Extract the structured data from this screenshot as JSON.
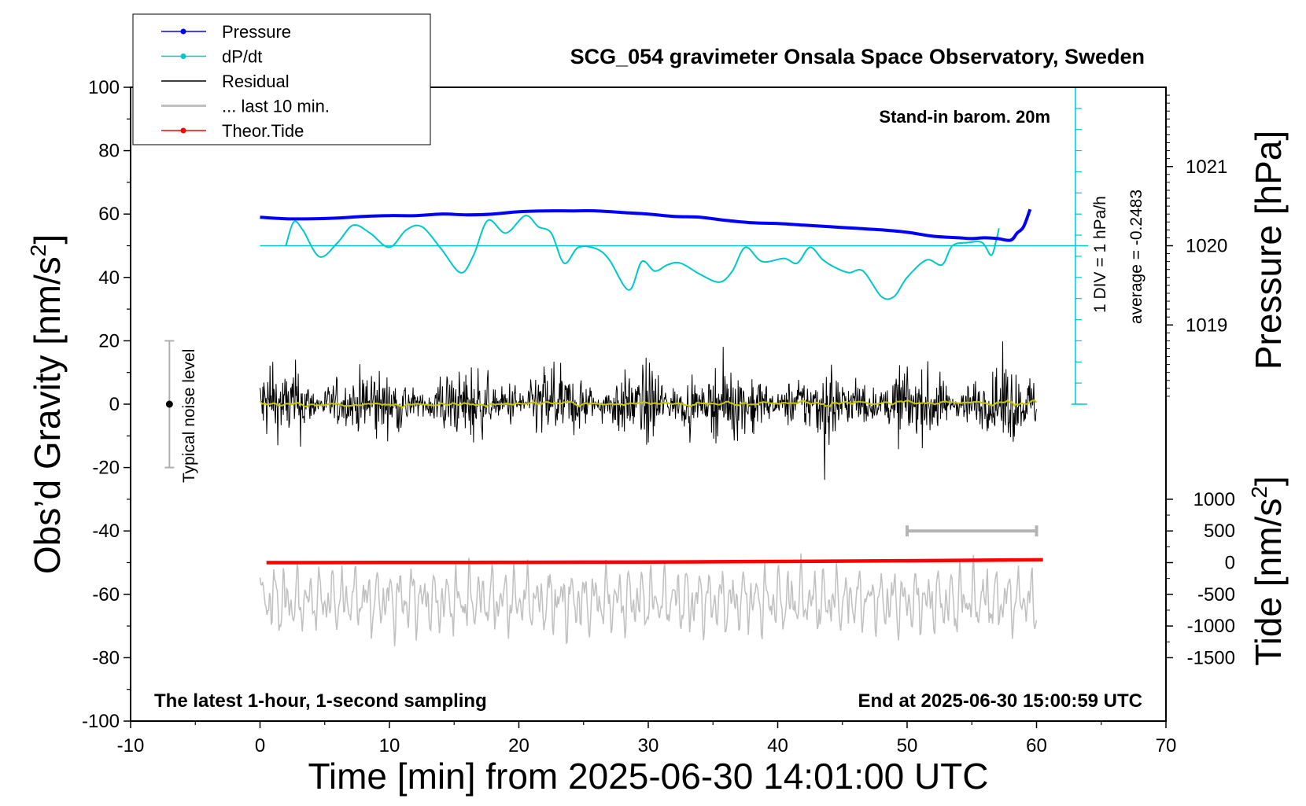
{
  "chart_data": {
    "type": "line",
    "title": "SCG_054 gravimeter Onsala Space Observatory, Sweden",
    "xlabel": "Time [min] from 2025-06-30 14:01:00 UTC",
    "ylabel": "Obs’d Gravity [nm/s",
    "ylabel_sup": "2",
    "ylabel_end": "]",
    "y2label": "Pressure [hPa]",
    "y3label": "Tide [nm/s",
    "y3label_sup": "2",
    "y3label_end": "]",
    "xlim": [
      -10,
      70
    ],
    "ylim": [
      -100,
      100
    ],
    "x_ticks": [
      -10,
      0,
      10,
      20,
      30,
      40,
      50,
      60,
      70
    ],
    "y_ticks": [
      -100,
      -80,
      -60,
      -40,
      -20,
      0,
      20,
      40,
      60,
      80,
      100
    ],
    "pressure_ticks": [
      1019,
      1020,
      1021
    ],
    "pressure_scale": {
      "ref_hpa": 1020,
      "ref_gravity_equiv": 50,
      "gravity_per_hpa": 25
    },
    "tide_ticks": [
      1000,
      500,
      0,
      -500,
      -1000,
      -1500
    ],
    "tide_scale": {
      "ref_value": 0,
      "ref_gravity_equiv": -50,
      "gravity_per_unit": 0.02
    },
    "grid": false,
    "legend_position": "top-left",
    "legend": [
      {
        "label": "Pressure",
        "color": "#0000ff",
        "marker": "dot"
      },
      {
        "label": "dP/dt",
        "color": "#00c8c8",
        "marker": "dot"
      },
      {
        "label": "Residual",
        "color": "#000000",
        "marker": "line"
      },
      {
        "label": "... last 10 min.",
        "color": "#c0c0c0",
        "marker": "line"
      },
      {
        "label": "Theor.Tide",
        "color": "#ff0000",
        "marker": "dot"
      }
    ],
    "annotations": {
      "barometer": "Stand-in barom. 20m",
      "dpdt_scale": "1 DIV = 1 hPa/h",
      "dpdt_average": "average = -0.2483",
      "noise": "Typical noise level",
      "latest": "The latest 1-hour, 1-second sampling",
      "end_time": "End at 2025-06-30 15:00:59 UTC"
    },
    "series": [
      {
        "name": "Pressure",
        "color": "#0000ff",
        "unit": "hPa",
        "x": [
          0,
          2,
          4,
          6,
          8,
          10,
          12,
          14,
          16,
          18,
          20,
          22,
          24,
          26,
          28,
          30,
          32,
          34,
          36,
          38,
          40,
          42,
          44,
          46,
          48,
          50,
          52,
          54,
          55,
          56,
          57,
          58,
          58.5,
          59,
          59.5
        ],
        "y": [
          1020.36,
          1020.34,
          1020.34,
          1020.35,
          1020.37,
          1020.38,
          1020.38,
          1020.4,
          1020.39,
          1020.4,
          1020.43,
          1020.44,
          1020.44,
          1020.44,
          1020.42,
          1020.4,
          1020.37,
          1020.36,
          1020.32,
          1020.29,
          1020.28,
          1020.26,
          1020.24,
          1020.22,
          1020.2,
          1020.17,
          1020.12,
          1020.1,
          1020.09,
          1020.1,
          1020.09,
          1020.07,
          1020.16,
          1020.24,
          1020.46
        ]
      },
      {
        "name": "dP/dt",
        "color": "#00c8c8",
        "unit": "nm/s2 equiv.",
        "x": [
          2,
          2.6,
          3.3,
          4.6,
          6,
          7.2,
          8.5,
          10,
          11.3,
          12.5,
          14,
          15.5,
          16.5,
          17.6,
          19,
          20.5,
          21.5,
          22.5,
          23.5,
          24.6,
          26,
          27,
          28.5,
          29.5,
          30.5,
          31.5,
          32.5,
          34,
          35.5,
          36.5,
          37.5,
          38.8,
          40.5,
          41.5,
          42.5,
          43.5,
          44.5,
          45.5,
          46.6,
          48,
          49,
          50,
          51.5,
          52.7,
          53.5,
          54.7,
          55.8,
          56.5,
          56.9,
          57.1
        ],
        "y": [
          50,
          57.5,
          55,
          46.5,
          51,
          56.5,
          54,
          49.5,
          55,
          56,
          49,
          41.5,
          47,
          58,
          54,
          59.5,
          56,
          54,
          44.5,
          49.5,
          49,
          45.5,
          36,
          45,
          42,
          44,
          44.5,
          41,
          38.5,
          42,
          49.5,
          45,
          46,
          44.5,
          49.5,
          45.5,
          43,
          41.5,
          42,
          34,
          34,
          40,
          45.5,
          44,
          50,
          51,
          51,
          47,
          52,
          55.5
        ]
      },
      {
        "name": "Residual",
        "color": "#000000"
      },
      {
        "name": "... last 10 min.",
        "color": "#c0c0c0"
      },
      {
        "name": "Theor.Tide",
        "color": "#ff0000",
        "unit": "nm/s2",
        "x": [
          0.5,
          10,
          20,
          30,
          40,
          50,
          60.5
        ],
        "y": [
          0,
          2,
          5,
          10,
          18,
          30,
          45
        ]
      }
    ],
    "noise_level_bar": {
      "x": -7,
      "center": 0,
      "low": -20,
      "high": 20
    },
    "last10_marker": {
      "x_start": 50,
      "x_end": 60,
      "tide_value": 500
    }
  }
}
